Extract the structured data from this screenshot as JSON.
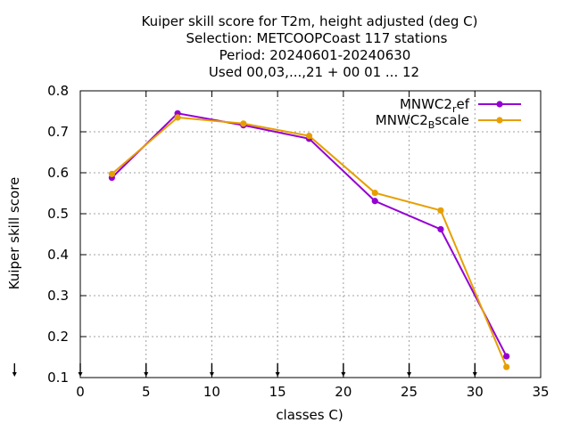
{
  "chart_data": {
    "type": "line",
    "title_lines": [
      "Kuiper skill score  for T2m, height adjusted (deg C)",
      "Selection: METCOOPCoast     117 stations",
      "Period: 20240601-20240630",
      "Used 00,03,...,21 + 00 01 ... 12"
    ],
    "xlabel": "classes C)",
    "ylabel": "Kuiper skill score",
    "xlim": [
      0,
      35
    ],
    "ylim": [
      0.1,
      0.8
    ],
    "xticks": [
      "0",
      "5",
      "10",
      "15",
      "20",
      "25",
      "30",
      "35"
    ],
    "yticks": [
      "0.1",
      "0.2",
      "0.3",
      "0.4",
      "0.5",
      "0.6",
      "0.7",
      "0.8"
    ],
    "grid": true,
    "legend_position": "top-right",
    "x": [
      2.4,
      7.4,
      12.4,
      17.4,
      22.4,
      27.4,
      32.4
    ],
    "series": [
      {
        "name": "MNWC2_ref",
        "legend_main": "MNWC2",
        "legend_sub": "r",
        "legend_tail": "ef",
        "color": "#9400d3",
        "values": [
          0.588,
          0.745,
          0.716,
          0.683,
          0.531,
          0.462,
          0.152
        ]
      },
      {
        "name": "MNWC2_Bscale",
        "legend_main": "MNWC2",
        "legend_sub": "B",
        "legend_tail": "scale",
        "color": "#e69f00",
        "values": [
          0.597,
          0.735,
          0.72,
          0.69,
          0.551,
          0.508,
          0.126
        ]
      }
    ],
    "arrow_markers_x": [
      -5,
      0,
      5,
      10,
      15,
      20,
      25,
      30
    ]
  }
}
